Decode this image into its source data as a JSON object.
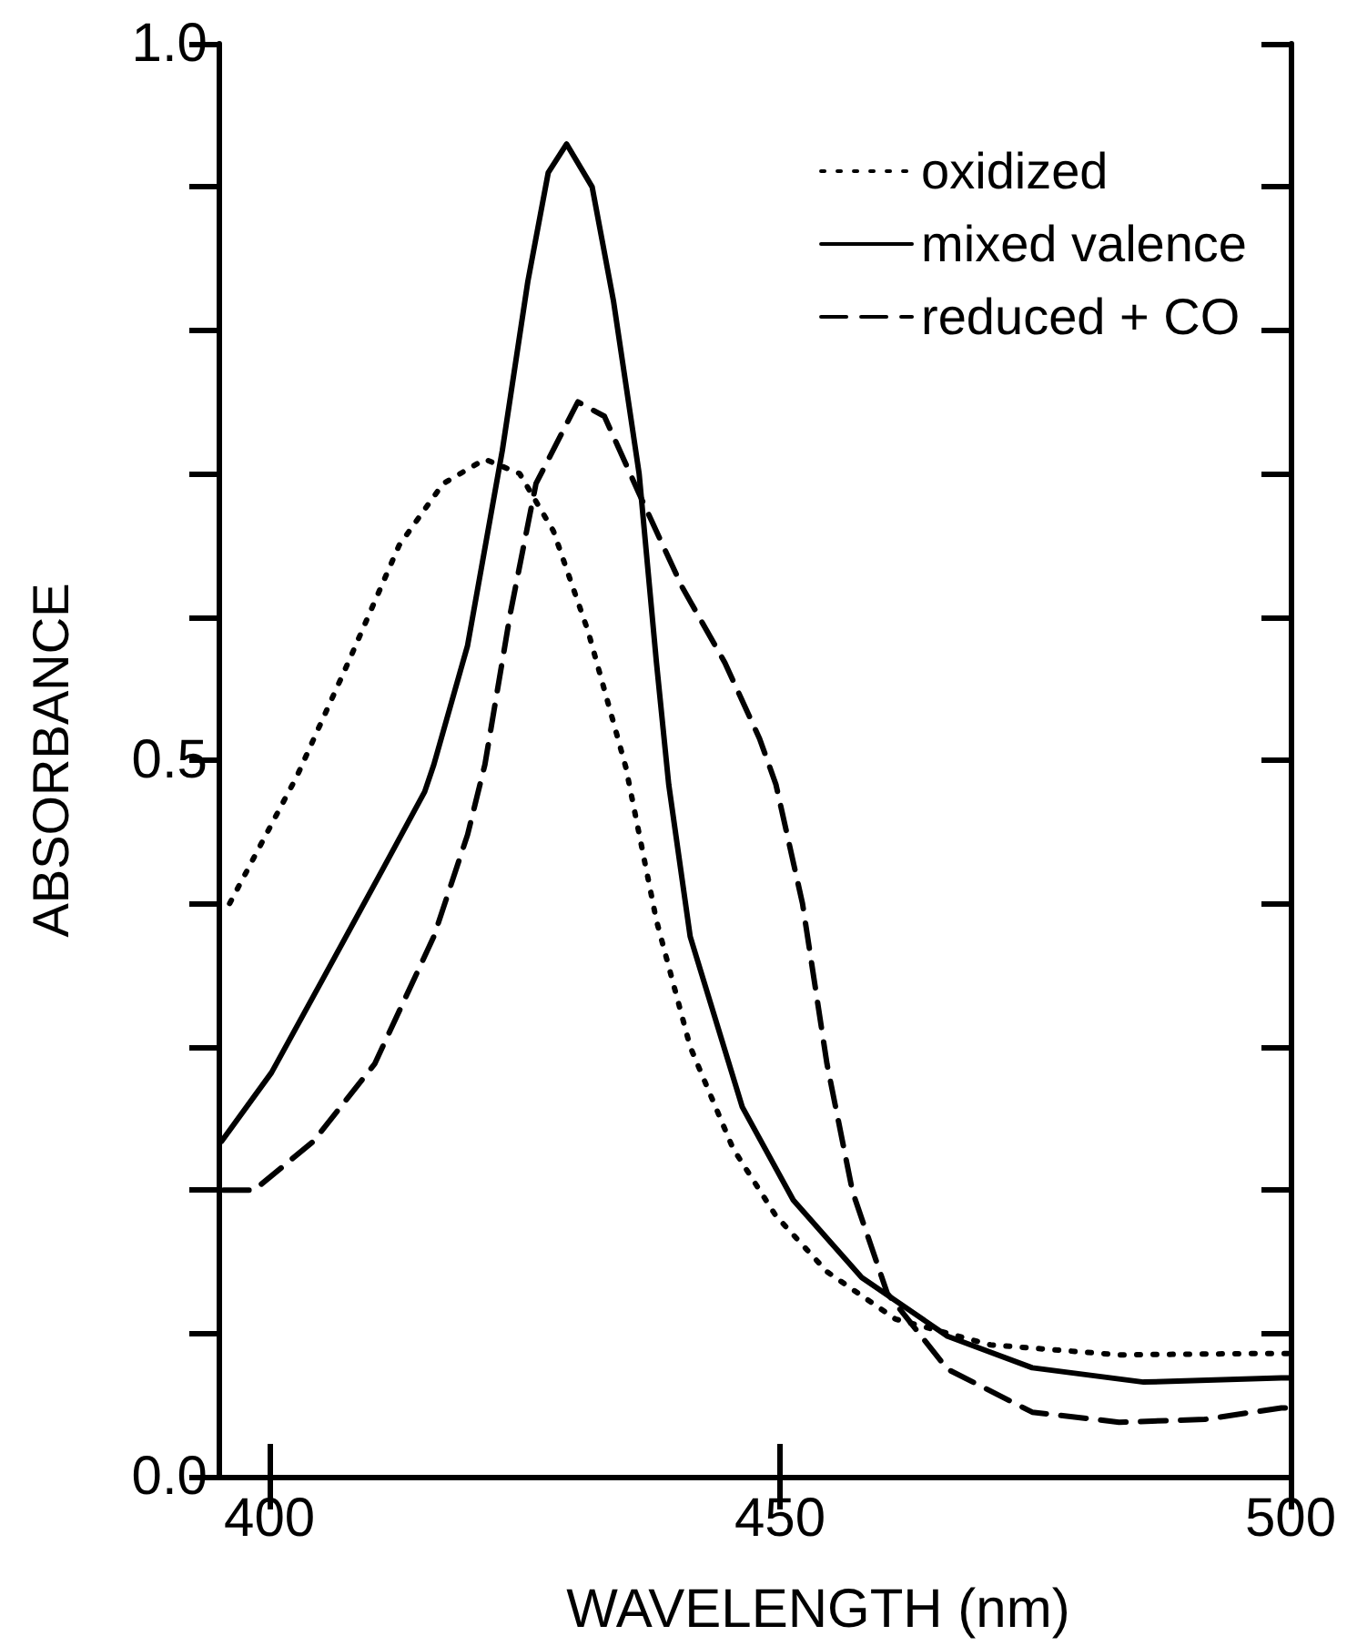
{
  "chart_data": {
    "type": "line",
    "xlabel": "WAVELENGTH (nm)",
    "ylabel": "ABSORBANCE",
    "xlim": [
      395,
      500
    ],
    "xticks": [
      400,
      450,
      500
    ],
    "ylim": [
      0,
      1
    ],
    "yticks": [
      {
        "value": 0,
        "label": "0.0"
      },
      {
        "value": 0.1,
        "label": null
      },
      {
        "value": 0.2,
        "label": null
      },
      {
        "value": 0.3,
        "label": null
      },
      {
        "value": 0.4,
        "label": null
      },
      {
        "value": 0.5,
        "label": "0.5"
      },
      {
        "value": 0.6,
        "label": null
      },
      {
        "value": 0.7,
        "label": null
      },
      {
        "value": 0.8,
        "label": null
      },
      {
        "value": 0.9,
        "label": null
      },
      {
        "value": 1,
        "label": "1.0"
      }
    ],
    "grid": false,
    "legend": "top right",
    "marker": "none",
    "series": [
      {
        "name": "oxidized",
        "color": "#000000",
        "line_style": "dotted",
        "x": [
          396.1,
          402.7,
          407.7,
          412.7,
          417.0,
          421.1,
          424.5,
          427.8,
          431.2,
          433.7,
          434.9,
          437.9,
          441.2,
          445.4,
          449.6,
          454.6,
          461.3,
          470.6,
          483.2,
          497.4,
          500
        ],
        "values": [
          0.4,
          0.489,
          0.568,
          0.65,
          0.693,
          0.71,
          0.7,
          0.66,
          0.59,
          0.526,
          0.495,
          0.388,
          0.3,
          0.229,
          0.182,
          0.143,
          0.11,
          0.092,
          0.085,
          0.086,
          0.086
        ]
      },
      {
        "name": "mixed valence",
        "color": "#000000",
        "line_style": "solid",
        "x": [
          395.3,
          400.2,
          405.2,
          411.1,
          415.2,
          416.1,
          419.4,
          422.8,
          425.3,
          427.3,
          429.1,
          431.6,
          433.7,
          436.2,
          437.9,
          439.1,
          441.2,
          446.3,
          451.3,
          458.0,
          466.4,
          474.7,
          485.6,
          499.1,
          500
        ],
        "values": [
          0.234,
          0.282,
          0.347,
          0.424,
          0.478,
          0.497,
          0.58,
          0.716,
          0.834,
          0.91,
          0.93,
          0.9,
          0.82,
          0.7,
          0.568,
          0.483,
          0.377,
          0.258,
          0.193,
          0.139,
          0.098,
          0.076,
          0.066,
          0.069,
          0.069
        ]
      },
      {
        "name": "reduced + CO",
        "color": "#000000",
        "line_style": "dashed",
        "x": [
          395.5,
          398.5,
          404.3,
          410.3,
          416.1,
          419.4,
          421.1,
          423.6,
          426.1,
          430.2,
          432.8,
          436.2,
          440.4,
          444.6,
          448.0,
          449.6,
          452.2,
          454.6,
          457.1,
          460.5,
          466.4,
          474.7,
          483.2,
          491.6,
          499.1,
          500
        ],
        "values": [
          0.2,
          0.2,
          0.234,
          0.288,
          0.377,
          0.448,
          0.497,
          0.603,
          0.693,
          0.75,
          0.74,
          0.686,
          0.621,
          0.568,
          0.515,
          0.483,
          0.4,
          0.288,
          0.199,
          0.128,
          0.075,
          0.045,
          0.038,
          0.04,
          0.048,
          0.048
        ]
      }
    ]
  }
}
